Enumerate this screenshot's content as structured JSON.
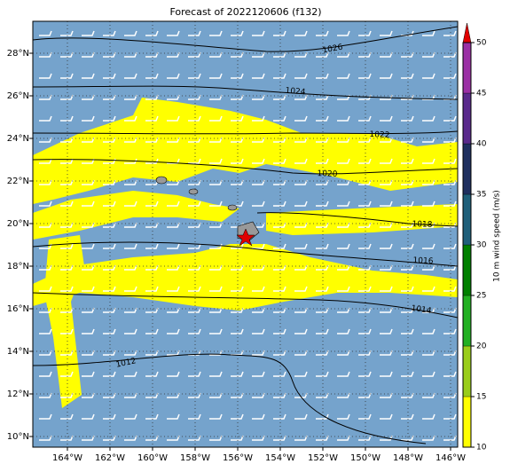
{
  "map": {
    "title": "Forecast of 2022120606 (f132)",
    "lon_labels": [
      "164°W",
      "162°W",
      "160°W",
      "158°W",
      "156°W",
      "154°W",
      "152°W",
      "150°W",
      "148°W",
      "146°W"
    ],
    "lat_labels": [
      "28°N",
      "26°N",
      "24°N",
      "22°N",
      "20°N",
      "18°N",
      "16°N",
      "14°N",
      "12°N",
      "10°N"
    ],
    "isobar_labels": [
      1026,
      1024,
      1022,
      1020,
      1018,
      1016,
      1014,
      1012
    ],
    "colorbar": {
      "label": "10 m wind speed (m/s)",
      "lim": [
        10,
        50
      ],
      "ticks": [
        10,
        15,
        20,
        25,
        30,
        35,
        40,
        45,
        50
      ],
      "colors": [
        "#ffff00",
        "#9acd1a",
        "#22b022",
        "#008000",
        "#1f5f7a",
        "#1f2f5f",
        "#5a2a8c",
        "#9b30a5"
      ],
      "over_color": "#e00000"
    }
  }
}
